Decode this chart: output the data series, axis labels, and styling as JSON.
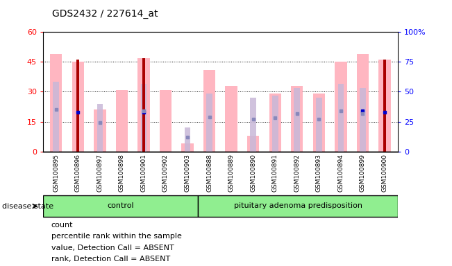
{
  "title": "GDS2432 / 227614_at",
  "samples": [
    "GSM100895",
    "GSM100896",
    "GSM100897",
    "GSM100898",
    "GSM100901",
    "GSM100902",
    "GSM100903",
    "GSM100888",
    "GSM100889",
    "GSM100890",
    "GSM100891",
    "GSM100892",
    "GSM100893",
    "GSM100894",
    "GSM100899",
    "GSM100900"
  ],
  "n_control": 7,
  "n_pituitary": 9,
  "value_absent": [
    49,
    45,
    21,
    31,
    47,
    31,
    4,
    41,
    33,
    8,
    29,
    33,
    29,
    45,
    49,
    46
  ],
  "rank_absent_vals": [
    35,
    null,
    24,
    null,
    34,
    null,
    12,
    29,
    null,
    27,
    28,
    32,
    27,
    34,
    32,
    null
  ],
  "count": [
    null,
    46,
    null,
    null,
    47,
    null,
    null,
    null,
    null,
    null,
    null,
    null,
    null,
    null,
    null,
    46
  ],
  "percentile_rank": [
    null,
    33,
    null,
    null,
    33,
    null,
    null,
    null,
    null,
    null,
    null,
    null,
    null,
    null,
    34,
    33
  ],
  "bar_color_value": "#FFB6C1",
  "bar_color_rank": "#C8B8D8",
  "bar_color_count": "#AA0000",
  "dot_color_percentile": "#0000CC",
  "dot_color_rank": "#8888BB",
  "bg_color": "#D8D8D8",
  "group_color": "#90EE90",
  "yticks_left": [
    0,
    15,
    30,
    45,
    60
  ],
  "yticks_right": [
    0,
    25,
    50,
    75,
    100
  ],
  "legend_items": [
    {
      "color": "#AA0000",
      "label": "count",
      "shape": "square"
    },
    {
      "color": "#0000CC",
      "label": "percentile rank within the sample",
      "shape": "square"
    },
    {
      "color": "#FFB6C1",
      "label": "value, Detection Call = ABSENT",
      "shape": "rect"
    },
    {
      "color": "#C8B8D8",
      "label": "rank, Detection Call = ABSENT",
      "shape": "rect"
    }
  ]
}
